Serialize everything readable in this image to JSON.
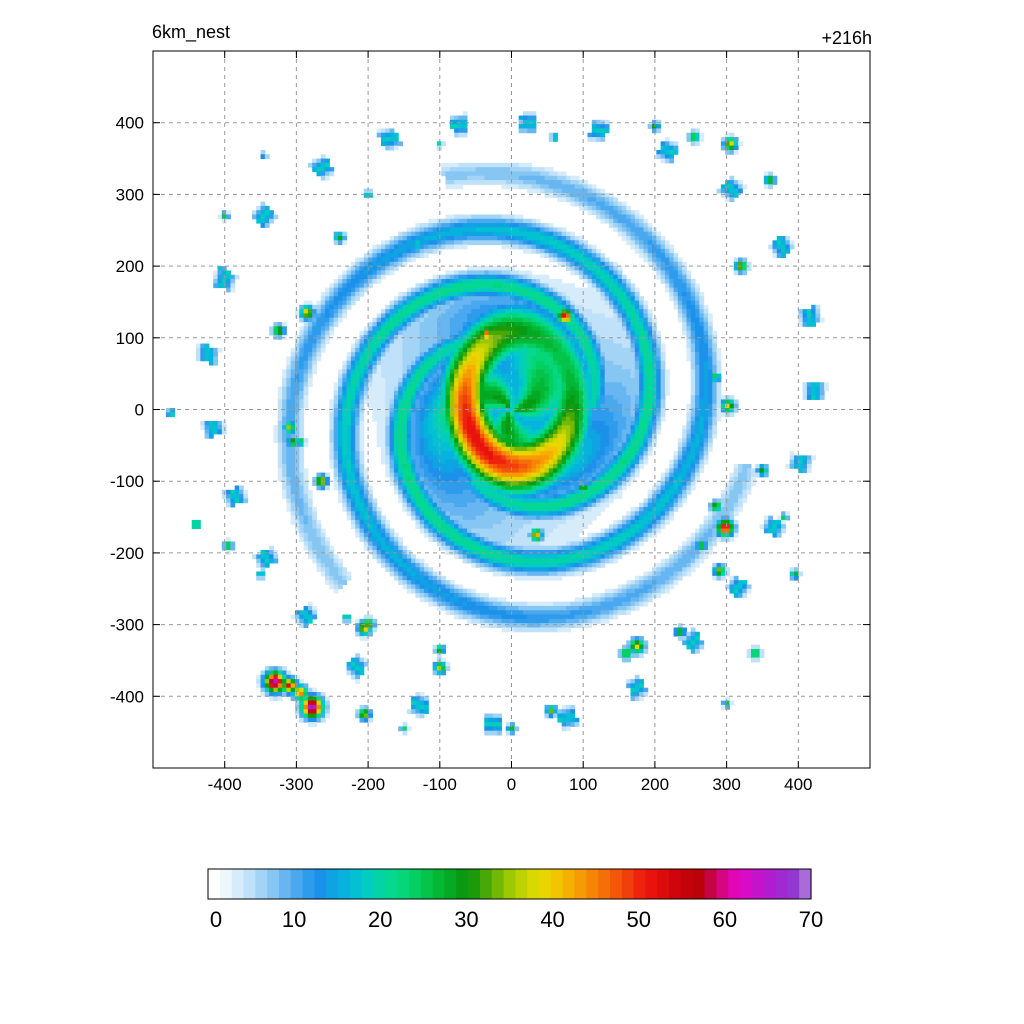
{
  "title_left": "6km_nest",
  "title_right": "+216h",
  "chart_data": {
    "type": "heatmap",
    "title": "6km_nest",
    "subtitle": "+216h",
    "xlim": [
      -500,
      500
    ],
    "ylim": [
      -500,
      500
    ],
    "x_ticks": [
      -400,
      -300,
      -200,
      -100,
      0,
      100,
      200,
      300,
      400
    ],
    "y_ticks": [
      400,
      300,
      200,
      100,
      0,
      -100,
      -200,
      -300,
      -400
    ],
    "grid": true,
    "colorbar": {
      "min": 0,
      "max": 70,
      "ticks": [
        0,
        10,
        20,
        30,
        40,
        50,
        60,
        70
      ],
      "colors": [
        "#ffffff",
        "#eef6fd",
        "#d6ecfb",
        "#bfe1f9",
        "#a3d4f6",
        "#86c6f3",
        "#68b6f1",
        "#4aa8ef",
        "#2e9bec",
        "#1c91ea",
        "#0fa3e3",
        "#06b3dd",
        "#03c1d3",
        "#03ccc0",
        "#04d3a6",
        "#06d890",
        "#05d67a",
        "#04cf62",
        "#04c44a",
        "#04b735",
        "#05a922",
        "#089b12",
        "#1b9a0a",
        "#47a807",
        "#73b805",
        "#9cc804",
        "#bdd203",
        "#d8d902",
        "#e9d502",
        "#f1c502",
        "#f5b003",
        "#f69b04",
        "#f68506",
        "#f56e08",
        "#f4560a",
        "#f23d0c",
        "#ef230d",
        "#e8130d",
        "#dc0b0c",
        "#cf050b",
        "#c3030a",
        "#b90309",
        "#c40542",
        "#d6067e",
        "#e207b4",
        "#d80cc6",
        "#c513cc",
        "#b31bcf",
        "#a228d1",
        "#9337d2",
        "#a86bd8"
      ]
    },
    "field_description": "precipitation/reflectivity-like field of a tropical cyclone with central eye near (0,0), spiral rainbands, and scattered outer convective cells"
  }
}
